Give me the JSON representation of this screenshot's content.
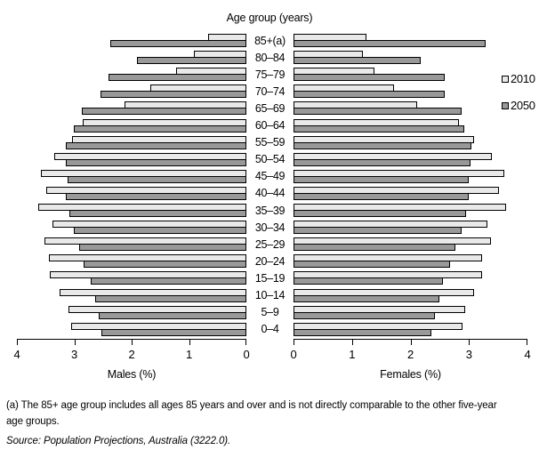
{
  "chart_data": {
    "type": "bar",
    "variant": "population_pyramid",
    "title": "Age group (years)",
    "left_axis": {
      "label": "Males (%)",
      "ticks": [
        "4",
        "3",
        "2",
        "1",
        "0"
      ]
    },
    "right_axis": {
      "label": "Females (%)",
      "ticks": [
        "0",
        "1",
        "2",
        "3",
        "4"
      ]
    },
    "xlim": [
      0,
      4
    ],
    "grid": false,
    "legend_position": "right",
    "age_groups": [
      "85+(a)",
      "80–84",
      "75–79",
      "70–74",
      "65–69",
      "60–64",
      "55–59",
      "50–54",
      "45–49",
      "40–44",
      "35–39",
      "30–34",
      "25–29",
      "20–24",
      "15–19",
      "10–14",
      "5–9",
      "0–4"
    ],
    "series": [
      {
        "name": "2010",
        "color": "#e9e9e9",
        "males": [
          0.67,
          0.91,
          1.22,
          1.67,
          2.13,
          2.85,
          3.04,
          3.35,
          3.58,
          3.49,
          3.63,
          3.38,
          3.52,
          3.44,
          3.43,
          3.25,
          3.1,
          3.06
        ],
        "females": [
          1.24,
          1.18,
          1.38,
          1.72,
          2.11,
          2.83,
          3.09,
          3.39,
          3.61,
          3.52,
          3.64,
          3.31,
          3.37,
          3.23,
          3.22,
          3.09,
          2.94,
          2.89
        ]
      },
      {
        "name": "2050",
        "color": "#999999",
        "males": [
          2.38,
          1.91,
          2.4,
          2.54,
          2.87,
          3.01,
          3.14,
          3.14,
          3.11,
          3.14,
          3.09,
          3.01,
          2.92,
          2.83,
          2.72,
          2.64,
          2.58,
          2.52
        ],
        "females": [
          3.29,
          2.17,
          2.59,
          2.59,
          2.87,
          2.92,
          3.04,
          3.02,
          2.99,
          3.0,
          2.95,
          2.87,
          2.77,
          2.67,
          2.56,
          2.49,
          2.42,
          2.36
        ]
      }
    ]
  },
  "footnote": "(a) The 85+ age group includes all ages 85 years and over and is not directly comparable to the other five-year age groups.",
  "source": "Source: Population Projections, Australia (3222.0)."
}
